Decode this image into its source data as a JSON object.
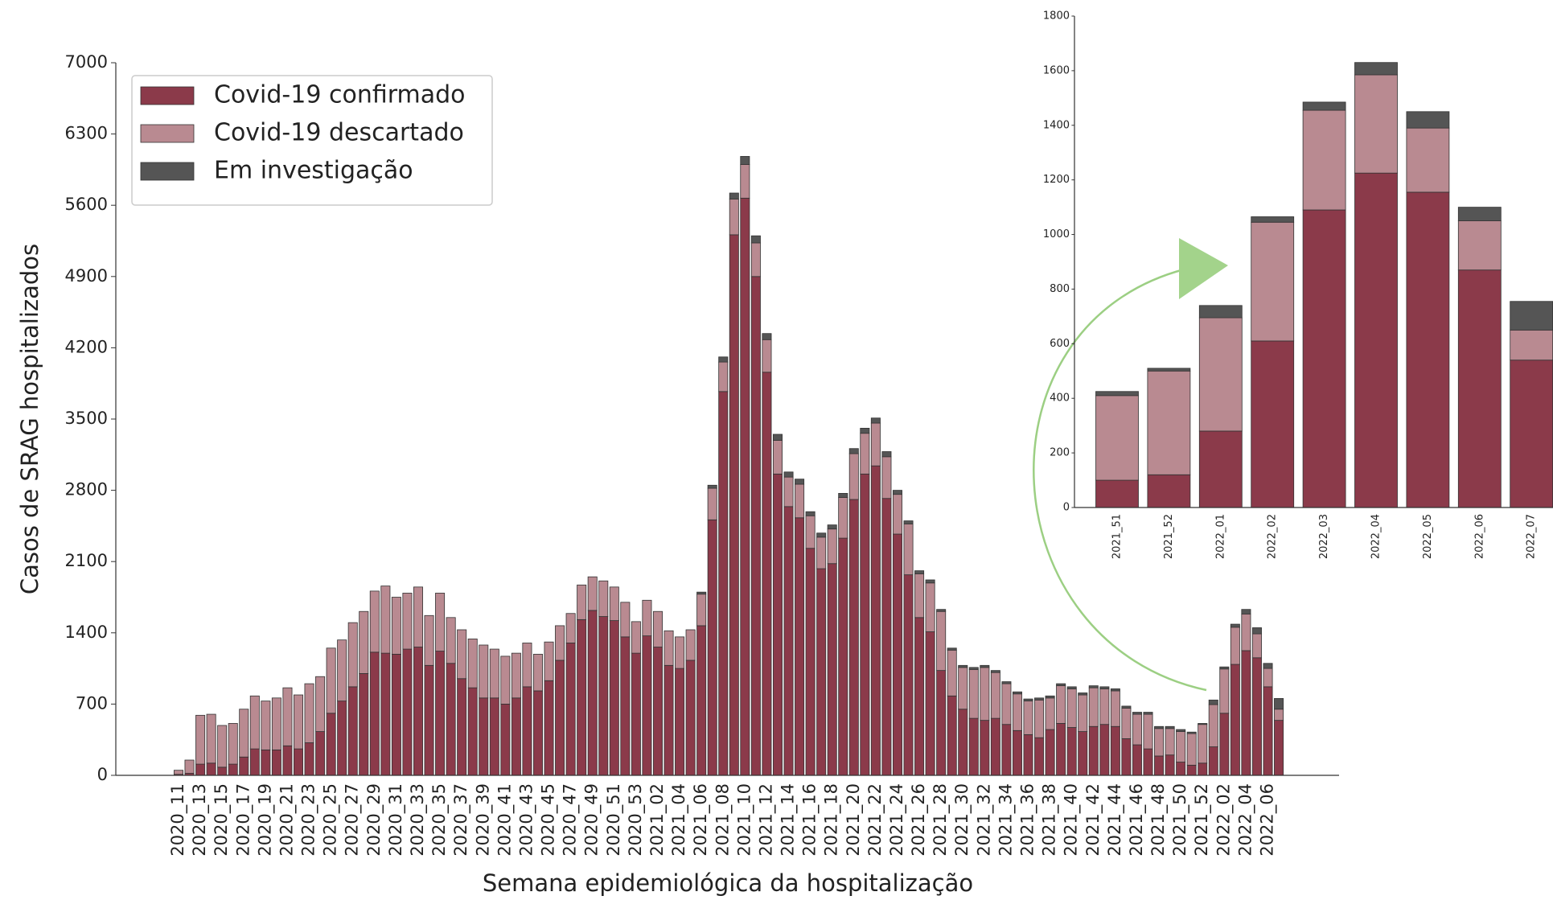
{
  "chart_data": [
    {
      "type": "bar",
      "stacked": true,
      "xlabel": "Semana epidemiológica da hospitalização",
      "ylabel": "Casos de SRAG hospitalizados",
      "ylim": [
        0,
        7000
      ],
      "yticks": [
        0,
        700,
        1400,
        2100,
        2800,
        3500,
        4200,
        4900,
        5600,
        6300,
        7000
      ],
      "legend": "upper left",
      "categories": [
        "2020_11",
        null,
        "2020_13",
        null,
        "2020_15",
        null,
        "2020_17",
        null,
        "2020_19",
        null,
        "2020_21",
        null,
        "2020_23",
        null,
        "2020_25",
        null,
        "2020_27",
        null,
        "2020_29",
        null,
        "2020_31",
        null,
        "2020_33",
        null,
        "2020_35",
        null,
        "2020_37",
        null,
        "2020_39",
        null,
        "2020_41",
        null,
        "2020_43",
        null,
        "2020_45",
        null,
        "2020_47",
        null,
        "2020_49",
        null,
        "2020_51",
        null,
        "2020_53",
        null,
        "2021_02",
        null,
        "2021_04",
        null,
        "2021_06",
        null,
        "2021_08",
        null,
        "2021_10",
        null,
        "2021_12",
        null,
        "2021_14",
        null,
        "2021_16",
        null,
        "2021_18",
        null,
        "2021_20",
        null,
        "2021_22",
        null,
        "2021_24",
        null,
        "2021_26",
        null,
        "2021_28",
        null,
        "2021_30",
        null,
        "2021_32",
        null,
        "2021_34",
        null,
        "2021_36",
        null,
        "2021_38",
        null,
        "2021_40",
        null,
        "2021_42",
        null,
        "2021_44",
        null,
        "2021_46",
        null,
        "2021_48",
        null,
        "2021_50",
        null,
        "2021_52",
        null,
        "2022_02",
        null,
        "2022_04",
        null,
        "2022_06",
        null
      ],
      "series": [
        {
          "name": "Covid-19 confirmado",
          "color": "#8b3a4a",
          "values": [
            10,
            20,
            110,
            120,
            80,
            110,
            180,
            260,
            250,
            250,
            290,
            260,
            320,
            430,
            610,
            730,
            870,
            1000,
            1210,
            1200,
            1190,
            1240,
            1260,
            1080,
            1220,
            1100,
            950,
            860,
            760,
            760,
            700,
            760,
            870,
            830,
            930,
            1130,
            1300,
            1530,
            1620,
            1560,
            1520,
            1360,
            1200,
            1370,
            1260,
            1080,
            1050,
            1130,
            1470,
            2510,
            3770,
            5310,
            5670,
            4900,
            3960,
            2960,
            2640,
            2530,
            2230,
            2030,
            2080,
            2330,
            2710,
            2960,
            3040,
            2720,
            2370,
            1970,
            1550,
            1410,
            1030,
            780,
            650,
            560,
            540,
            560,
            500,
            440,
            400,
            370,
            450,
            510,
            470,
            430,
            480,
            500,
            480,
            360,
            300,
            260,
            190,
            200,
            130,
            100,
            120,
            280,
            610,
            1090,
            1225,
            1155,
            870,
            540
          ]
        },
        {
          "name": "Covid-19 descartado",
          "color": "#b98a91",
          "values": [
            40,
            130,
            480,
            480,
            410,
            400,
            470,
            520,
            480,
            510,
            570,
            530,
            580,
            540,
            640,
            600,
            630,
            610,
            600,
            660,
            560,
            550,
            590,
            490,
            570,
            450,
            480,
            480,
            520,
            480,
            470,
            440,
            430,
            360,
            380,
            340,
            290,
            340,
            330,
            350,
            330,
            340,
            310,
            350,
            350,
            340,
            310,
            300,
            310,
            310,
            290,
            350,
            330,
            330,
            320,
            330,
            290,
            330,
            320,
            310,
            340,
            400,
            450,
            400,
            420,
            410,
            390,
            500,
            430,
            480,
            580,
            450,
            410,
            480,
            520,
            450,
            400,
            360,
            330,
            370,
            310,
            370,
            380,
            360,
            380,
            350,
            350,
            300,
            300,
            340,
            270,
            260,
            300,
            310,
            380,
            415,
            435,
            365,
            360,
            235,
            180,
            110
          ]
        },
        {
          "name": "Em investigação",
          "color": "#555555",
          "values": [
            0,
            0,
            0,
            0,
            0,
            0,
            0,
            0,
            0,
            0,
            0,
            0,
            0,
            0,
            0,
            0,
            0,
            0,
            0,
            0,
            0,
            0,
            0,
            0,
            0,
            0,
            0,
            0,
            0,
            0,
            0,
            0,
            0,
            0,
            0,
            0,
            0,
            0,
            0,
            0,
            0,
            0,
            0,
            0,
            0,
            0,
            0,
            0,
            20,
            30,
            50,
            60,
            80,
            70,
            60,
            60,
            50,
            50,
            40,
            40,
            40,
            40,
            50,
            50,
            50,
            50,
            40,
            30,
            30,
            30,
            20,
            20,
            20,
            20,
            20,
            20,
            20,
            20,
            20,
            20,
            20,
            20,
            20,
            20,
            20,
            20,
            20,
            20,
            20,
            20,
            20,
            20,
            20,
            15,
            10,
            45,
            20,
            30,
            45,
            60,
            50,
            105
          ]
        }
      ]
    },
    {
      "type": "bar",
      "stacked": true,
      "ylim": [
        0,
        1800
      ],
      "yticks": [
        0,
        200,
        400,
        600,
        800,
        1000,
        1200,
        1400,
        1600,
        1800
      ],
      "categories": [
        "2021_51",
        "2021_52",
        "2022_01",
        "2022_02",
        "2022_03",
        "2022_04",
        "2022_05",
        "2022_06",
        "2022_07"
      ],
      "series": [
        {
          "color": "#8b3a4a",
          "values": [
            100,
            120,
            280,
            610,
            1090,
            1225,
            1155,
            870,
            540
          ]
        },
        {
          "color": "#b98a91",
          "values": [
            310,
            380,
            415,
            435,
            365,
            360,
            235,
            180,
            110
          ]
        },
        {
          "color": "#555555",
          "values": [
            15,
            10,
            45,
            20,
            30,
            45,
            60,
            50,
            105
          ]
        }
      ]
    }
  ]
}
